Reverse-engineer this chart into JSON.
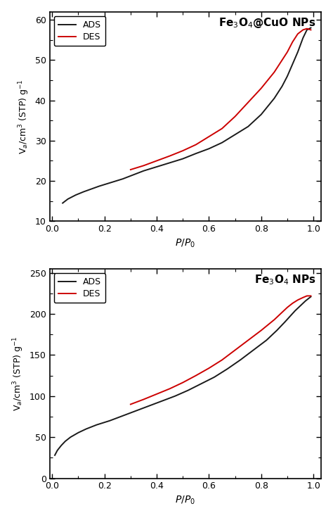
{
  "top_chart": {
    "title": "Fe$_3$O$_4$@CuO NPs",
    "ylabel": "V$_a$/cm$^3$ (STP) g$^{-1}$",
    "xlabel": "$P$/$P_0$",
    "ylim": [
      10,
      62
    ],
    "xlim": [
      -0.01,
      1.03
    ],
    "yticks": [
      10,
      20,
      30,
      40,
      50,
      60
    ],
    "xticks": [
      0.0,
      0.2,
      0.4,
      0.6,
      0.8,
      1.0
    ],
    "ads_x": [
      0.04,
      0.06,
      0.09,
      0.12,
      0.15,
      0.18,
      0.22,
      0.27,
      0.31,
      0.35,
      0.4,
      0.45,
      0.5,
      0.55,
      0.6,
      0.65,
      0.7,
      0.75,
      0.8,
      0.85,
      0.88,
      0.9,
      0.92,
      0.94,
      0.96,
      0.975,
      0.99
    ],
    "ads_y": [
      14.5,
      15.5,
      16.5,
      17.3,
      18.0,
      18.7,
      19.5,
      20.5,
      21.5,
      22.5,
      23.5,
      24.5,
      25.5,
      26.8,
      28.0,
      29.5,
      31.5,
      33.5,
      36.5,
      40.5,
      43.5,
      46.0,
      49.0,
      52.0,
      55.5,
      57.5,
      58.0
    ],
    "des_x": [
      0.3,
      0.35,
      0.4,
      0.45,
      0.5,
      0.55,
      0.6,
      0.65,
      0.7,
      0.75,
      0.8,
      0.85,
      0.88,
      0.9,
      0.92,
      0.94,
      0.96,
      0.975,
      0.99
    ],
    "des_y": [
      22.8,
      23.8,
      25.0,
      26.2,
      27.5,
      29.0,
      31.0,
      33.0,
      36.0,
      39.5,
      43.0,
      47.0,
      50.0,
      52.0,
      54.5,
      56.5,
      57.5,
      57.8,
      57.5
    ],
    "ads_color": "#1a1a1a",
    "des_color": "#cc0000",
    "legend_ads": "ADS",
    "legend_des": "DES"
  },
  "bot_chart": {
    "title": "Fe$_3$O$_4$ NPs",
    "ylabel": "V$_a$/cm$^3$ (STP) g$^{-1}$",
    "xlabel": "$P$/$P_0$",
    "ylim": [
      0,
      255
    ],
    "xlim": [
      -0.01,
      1.03
    ],
    "yticks": [
      0,
      50,
      100,
      150,
      200,
      250
    ],
    "xticks": [
      0.0,
      0.2,
      0.4,
      0.6,
      0.8,
      1.0
    ],
    "ads_x": [
      0.01,
      0.02,
      0.035,
      0.05,
      0.07,
      0.1,
      0.13,
      0.17,
      0.22,
      0.27,
      0.32,
      0.37,
      0.42,
      0.47,
      0.52,
      0.57,
      0.62,
      0.67,
      0.72,
      0.77,
      0.82,
      0.86,
      0.89,
      0.91,
      0.93,
      0.95,
      0.97,
      0.99
    ],
    "ads_y": [
      28.0,
      34.0,
      40.0,
      45.0,
      50.0,
      55.5,
      60.0,
      65.0,
      70.0,
      76.0,
      82.0,
      88.0,
      94.0,
      100.0,
      107.0,
      115.0,
      123.0,
      133.0,
      144.0,
      156.0,
      168.0,
      180.0,
      190.0,
      197.0,
      204.0,
      210.0,
      216.0,
      221.0
    ],
    "des_x": [
      0.3,
      0.35,
      0.4,
      0.45,
      0.5,
      0.55,
      0.6,
      0.65,
      0.7,
      0.75,
      0.8,
      0.85,
      0.88,
      0.9,
      0.92,
      0.94,
      0.96,
      0.975,
      0.99
    ],
    "des_y": [
      90.0,
      96.0,
      102.5,
      109.0,
      116.5,
      125.0,
      134.0,
      144.0,
      156.0,
      168.0,
      180.0,
      193.0,
      202.0,
      208.0,
      213.0,
      217.0,
      220.0,
      222.0,
      222.0
    ],
    "ads_color": "#1a1a1a",
    "des_color": "#cc0000",
    "legend_ads": "ADS",
    "legend_des": "DES"
  },
  "bg_color": "#ffffff",
  "font_size": 9,
  "title_font_size": 11,
  "legend_font_size": 9,
  "spine_linewidth": 1.2,
  "line_linewidth": 1.4
}
